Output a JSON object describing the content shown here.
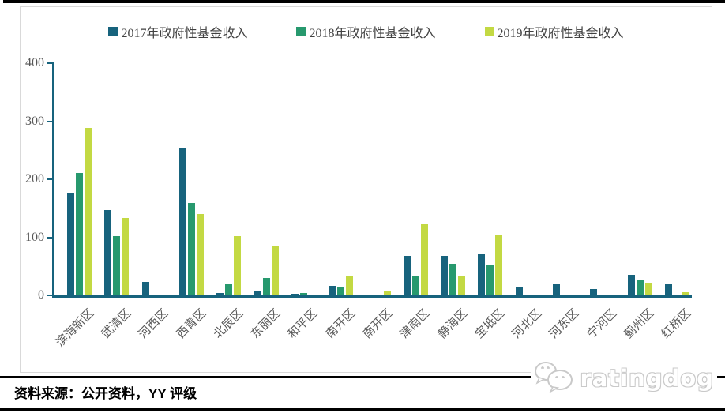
{
  "chart_data": {
    "type": "bar",
    "categories": [
      "滨海新区",
      "武清区",
      "河西区",
      "西青区",
      "北辰区",
      "东丽区",
      "和平区",
      "南开区",
      "南开区",
      "津南区",
      "静海区",
      "宝坻区",
      "河北区",
      "河东区",
      "宁河区",
      "蓟州区",
      "红桥区"
    ],
    "series": [
      {
        "name": "2017年政府性基金收入",
        "color": "#17637d",
        "values": [
          177,
          147,
          23,
          254,
          4,
          7,
          3,
          17,
          0,
          68,
          68,
          71,
          13,
          19,
          11,
          36,
          20
        ]
      },
      {
        "name": "2018年政府性基金收入",
        "color": "#27996e",
        "values": [
          211,
          102,
          0,
          159,
          20,
          30,
          4,
          13,
          0,
          32,
          55,
          53,
          0,
          0,
          0,
          26,
          0
        ]
      },
      {
        "name": "2019年政府性基金收入",
        "color": "#c3d943",
        "values": [
          288,
          134,
          0,
          140,
          102,
          86,
          0,
          32,
          8,
          122,
          33,
          103,
          0,
          0,
          0,
          22,
          5
        ]
      }
    ],
    "title": "",
    "xlabel": "",
    "ylabel": "",
    "ylim": [
      0,
      400
    ],
    "yticks": [
      0,
      100,
      200,
      300,
      400
    ],
    "grid": false,
    "legend_position": "top",
    "axis_color": "#17637d",
    "tick_label_color": "#595959"
  },
  "footer": {
    "source_label": "资料来源：公开资料，YY 评级"
  },
  "watermark": {
    "brand": "ratingdog",
    "icon": "wechat-speech-bubbles-icon"
  }
}
